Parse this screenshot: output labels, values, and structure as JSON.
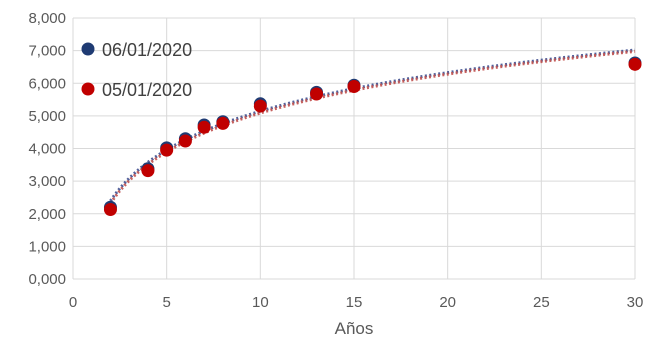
{
  "chart_data": {
    "type": "scatter",
    "title": "",
    "xlabel": "Años",
    "ylabel": "",
    "xlim": [
      0,
      30
    ],
    "ylim": [
      0,
      8
    ],
    "x_ticks": [
      0,
      5,
      10,
      15,
      20,
      25,
      30
    ],
    "y_ticks": [
      0,
      1,
      2,
      3,
      4,
      5,
      6,
      7,
      8
    ],
    "x_tick_labels": [
      "0",
      "5",
      "10",
      "15",
      "20",
      "25",
      "30"
    ],
    "y_tick_labels": [
      "0,000",
      "1,000",
      "2,000",
      "3,000",
      "4,000",
      "5,000",
      "6,000",
      "7,000",
      "8,000"
    ],
    "grid": true,
    "legend_position": "top-left",
    "series": [
      {
        "name": "06/01/2020",
        "color": "#1f3b73",
        "x": [
          2,
          4,
          5,
          6,
          7,
          8,
          10,
          13,
          15,
          30
        ],
        "y": [
          2.2,
          3.38,
          4.02,
          4.3,
          4.72,
          4.82,
          5.37,
          5.72,
          5.94,
          6.62
        ],
        "trendline": {
          "type": "logarithmic",
          "style": "dotted",
          "color": "#3f4f8f"
        }
      },
      {
        "name": "05/01/2020",
        "color": "#c00000",
        "x": [
          2,
          4,
          5,
          6,
          7,
          8,
          10,
          13,
          15,
          30
        ],
        "y": [
          2.13,
          3.32,
          3.95,
          4.23,
          4.65,
          4.77,
          5.3,
          5.67,
          5.9,
          6.58
        ],
        "trendline": {
          "type": "logarithmic",
          "style": "dotted",
          "color": "#c0504d"
        }
      }
    ]
  }
}
